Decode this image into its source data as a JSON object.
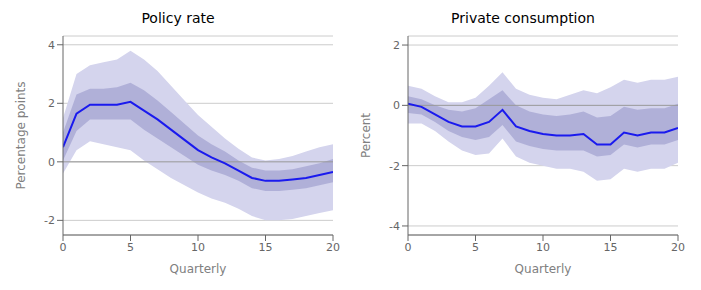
{
  "chart_data": [
    {
      "type": "line",
      "title": "Policy rate",
      "xlabel": "Quarterly",
      "ylabel": "Percentage points",
      "x": [
        0,
        1,
        2,
        3,
        4,
        5,
        6,
        7,
        8,
        9,
        10,
        11,
        12,
        13,
        14,
        15,
        16,
        17,
        18,
        19,
        20
      ],
      "series": [
        {
          "type": "area",
          "color": "#d4d4ed",
          "lower": [
            -0.4,
            0.4,
            0.7,
            0.6,
            0.5,
            0.4,
            0.05,
            -0.25,
            -0.55,
            -0.8,
            -1.05,
            -1.25,
            -1.4,
            -1.6,
            -1.85,
            -2.0,
            -2.0,
            -1.95,
            -1.85,
            -1.75,
            -1.65
          ],
          "upper": [
            1.5,
            3.0,
            3.3,
            3.4,
            3.5,
            3.8,
            3.5,
            3.1,
            2.6,
            2.1,
            1.6,
            1.2,
            0.8,
            0.45,
            0.15,
            0.05,
            0.1,
            0.2,
            0.35,
            0.5,
            0.6
          ]
        },
        {
          "type": "area",
          "color": "#b0b0d8",
          "lower": [
            0.05,
            1.05,
            1.45,
            1.45,
            1.45,
            1.45,
            1.1,
            0.8,
            0.5,
            0.2,
            -0.1,
            -0.3,
            -0.45,
            -0.65,
            -0.9,
            -1.0,
            -1.0,
            -0.95,
            -0.9,
            -0.8,
            -0.7
          ],
          "upper": [
            1.0,
            2.3,
            2.5,
            2.5,
            2.55,
            2.7,
            2.45,
            2.1,
            1.7,
            1.3,
            0.9,
            0.6,
            0.35,
            0.05,
            -0.2,
            -0.3,
            -0.3,
            -0.25,
            -0.15,
            -0.05,
            0.1
          ]
        },
        {
          "type": "line",
          "color": "#1a1aee",
          "values": [
            0.5,
            1.65,
            1.95,
            1.95,
            1.95,
            2.05,
            1.75,
            1.45,
            1.1,
            0.75,
            0.4,
            0.15,
            -0.05,
            -0.3,
            -0.55,
            -0.65,
            -0.65,
            -0.6,
            -0.55,
            -0.45,
            -0.35
          ]
        }
      ],
      "xlim": [
        0,
        20
      ],
      "xticks": [
        0,
        5,
        10,
        15,
        20
      ],
      "ylim": [
        -2.5,
        4.3
      ],
      "yticks": [
        -2,
        0,
        2,
        4
      ],
      "grid": true
    },
    {
      "type": "line",
      "title": "Private consumption",
      "xlabel": "Quarterly",
      "ylabel": "Percent",
      "x": [
        0,
        1,
        2,
        3,
        4,
        5,
        6,
        7,
        8,
        9,
        10,
        11,
        12,
        13,
        14,
        15,
        16,
        17,
        18,
        19,
        20
      ],
      "series": [
        {
          "type": "area",
          "color": "#d4d4ed",
          "lower": [
            -0.6,
            -0.6,
            -0.85,
            -1.2,
            -1.5,
            -1.65,
            -1.6,
            -1.1,
            -1.7,
            -1.9,
            -2.0,
            -2.1,
            -2.1,
            -2.2,
            -2.5,
            -2.45,
            -2.1,
            -2.2,
            -2.1,
            -2.1,
            -1.9
          ],
          "upper": [
            0.65,
            0.55,
            0.3,
            0.1,
            0.1,
            0.25,
            0.65,
            1.1,
            0.55,
            0.35,
            0.25,
            0.2,
            0.35,
            0.5,
            0.4,
            0.6,
            0.85,
            0.75,
            0.85,
            0.85,
            0.95
          ]
        },
        {
          "type": "area",
          "color": "#b0b0d8",
          "lower": [
            -0.25,
            -0.3,
            -0.55,
            -0.85,
            -1.05,
            -1.15,
            -1.05,
            -0.65,
            -1.2,
            -1.35,
            -1.45,
            -1.5,
            -1.5,
            -1.5,
            -1.7,
            -1.65,
            -1.3,
            -1.4,
            -1.3,
            -1.3,
            -1.15
          ],
          "upper": [
            0.3,
            0.2,
            -0.0,
            -0.15,
            -0.2,
            -0.1,
            0.2,
            0.5,
            0.0,
            -0.2,
            -0.3,
            -0.35,
            -0.3,
            -0.2,
            -0.4,
            -0.35,
            -0.05,
            -0.15,
            -0.1,
            -0.1,
            0.05
          ]
        },
        {
          "type": "line",
          "color": "#1a1aee",
          "values": [
            0.05,
            -0.05,
            -0.3,
            -0.55,
            -0.7,
            -0.7,
            -0.55,
            -0.15,
            -0.7,
            -0.85,
            -0.95,
            -1.0,
            -1.0,
            -0.95,
            -1.3,
            -1.3,
            -0.9,
            -1.0,
            -0.9,
            -0.9,
            -0.75
          ]
        }
      ],
      "xlim": [
        0,
        20
      ],
      "xticks": [
        0,
        5,
        10,
        15,
        20
      ],
      "ylim": [
        -4.3,
        2.3
      ],
      "yticks": [
        -4,
        -2,
        0,
        2
      ],
      "grid": true
    }
  ]
}
